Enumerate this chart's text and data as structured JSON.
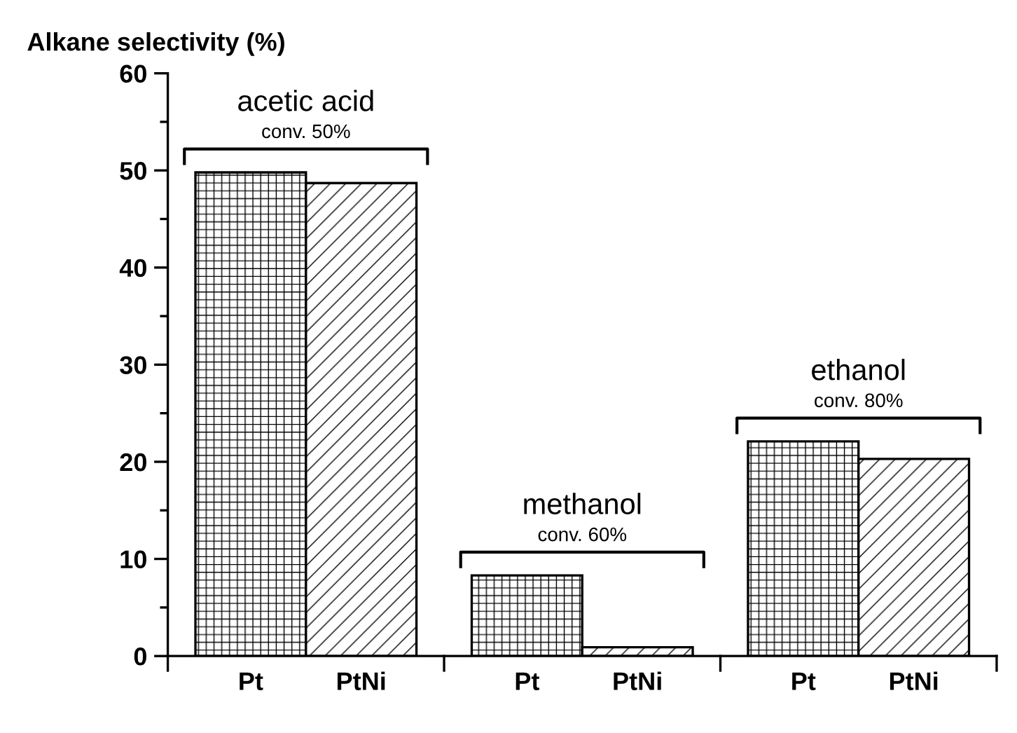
{
  "chart_data": {
    "type": "bar",
    "ylabel": "Alkane selectivity (%)",
    "categories": [
      "Pt",
      "PtNi",
      "Pt",
      "PtNi",
      "Pt",
      "PtNi"
    ],
    "values": [
      49.8,
      48.7,
      8.3,
      0.9,
      22.1,
      20.3
    ],
    "colors": [
      "#000000",
      "#000000",
      "#000000",
      "#000000",
      "#000000",
      "#000000"
    ],
    "ylim": [
      0,
      60
    ],
    "yticks": [
      0,
      10,
      20,
      30,
      40,
      50,
      60
    ],
    "grid": false,
    "annotations": [
      "acetic acid",
      "conv. 50%",
      "methanol",
      "conv. 60%",
      "ethanol",
      "conv. 80%"
    ]
  }
}
